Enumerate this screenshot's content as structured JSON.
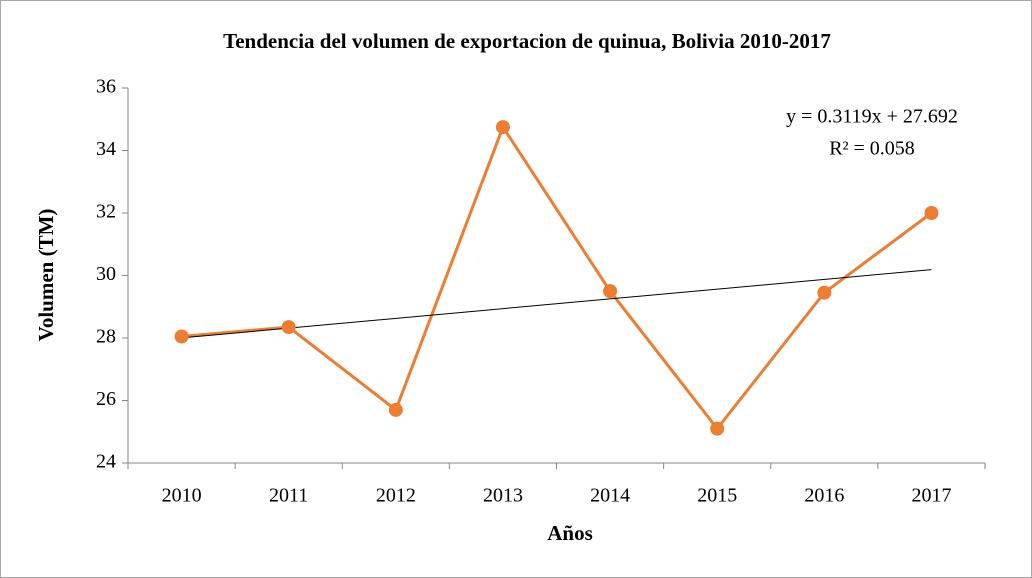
{
  "chart_data": {
    "type": "line",
    "title": "Tendencia del volumen de exportacion de quinua, Bolivia 2010-2017",
    "x_label": "Años",
    "y_label": "Volumen (TM)",
    "categories": [
      "2010",
      "2011",
      "2012",
      "2013",
      "2014",
      "2015",
      "2016",
      "2017"
    ],
    "values": [
      28.05,
      28.35,
      25.7,
      34.75,
      29.5,
      25.1,
      29.45,
      32.0
    ],
    "color": "#ed7d31",
    "ylim": [
      24,
      36
    ],
    "yticks": [
      24,
      26,
      28,
      30,
      32,
      34,
      36
    ],
    "grid": false,
    "trendline": {
      "equation": "y = 0.3119x + 27.692",
      "r2_label": "R² = 0.058",
      "slope": 0.3119,
      "intercept": 27.692,
      "color": "#000000"
    }
  }
}
